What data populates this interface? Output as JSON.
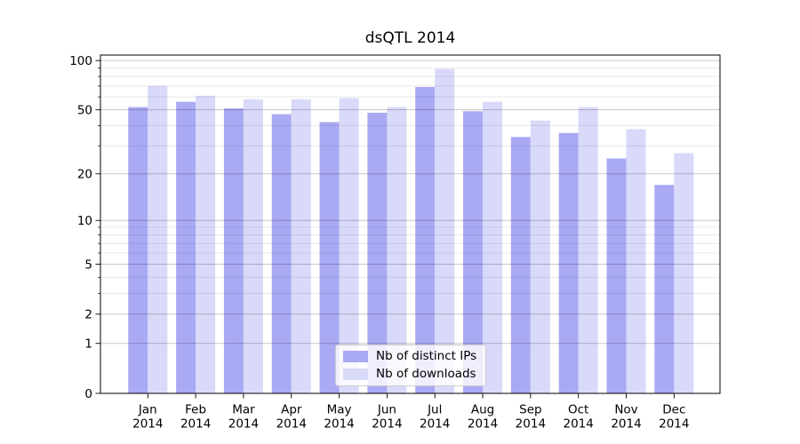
{
  "chart_data": {
    "type": "bar",
    "title": "dsQTL 2014",
    "xlabel": "",
    "ylabel": "",
    "y_scale": "log1p",
    "ylim": [
      0,
      108
    ],
    "y_major_ticks": [
      0,
      1,
      2,
      5,
      10,
      20,
      50,
      100
    ],
    "y_minor_ticks": [
      3,
      4,
      6,
      7,
      8,
      9,
      30,
      40,
      60,
      70,
      80,
      90
    ],
    "grid": "both",
    "legend_position": "lower center",
    "categories": [
      "Jan 2014",
      "Feb 2014",
      "Mar 2014",
      "Apr 2014",
      "May 2014",
      "Jun 2014",
      "Jul 2014",
      "Aug 2014",
      "Sep 2014",
      "Oct 2014",
      "Nov 2014",
      "Dec 2014"
    ],
    "x_tick_month": [
      "Jan",
      "Feb",
      "Mar",
      "Apr",
      "May",
      "Jun",
      "Jul",
      "Aug",
      "Sep",
      "Oct",
      "Nov",
      "Dec"
    ],
    "x_tick_year": "2014",
    "series": [
      {
        "name": "Nb of distinct IPs",
        "color": "#a9a9f4",
        "values": [
          52,
          56,
          51,
          47,
          42,
          48,
          69,
          49,
          34,
          36,
          25,
          17
        ]
      },
      {
        "name": "Nb of downloads",
        "color": "#d9d9f9",
        "values": [
          70,
          61,
          58,
          58,
          59,
          52,
          89,
          56,
          43,
          52,
          38,
          27
        ]
      }
    ]
  }
}
